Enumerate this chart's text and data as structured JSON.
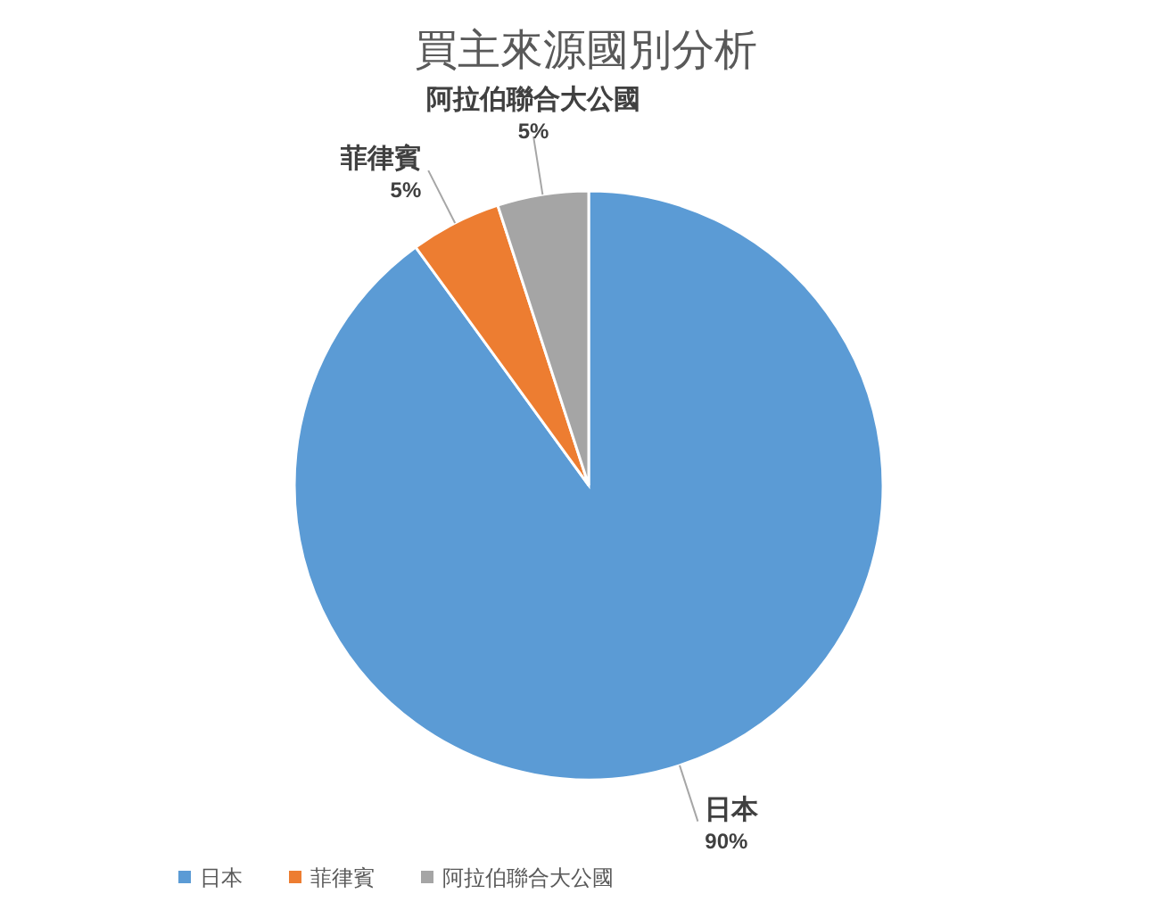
{
  "chart_data": {
    "type": "pie",
    "title": "買主來源國別分析",
    "categories": [
      "日本",
      "菲律賓",
      "阿拉伯聯合大公國"
    ],
    "values": [
      90,
      5,
      5
    ],
    "value_labels": [
      "90%",
      "5%",
      "5%"
    ],
    "colors": [
      "#5b9bd5",
      "#ed7d31",
      "#a5a5a5"
    ],
    "legend": "bottom"
  }
}
